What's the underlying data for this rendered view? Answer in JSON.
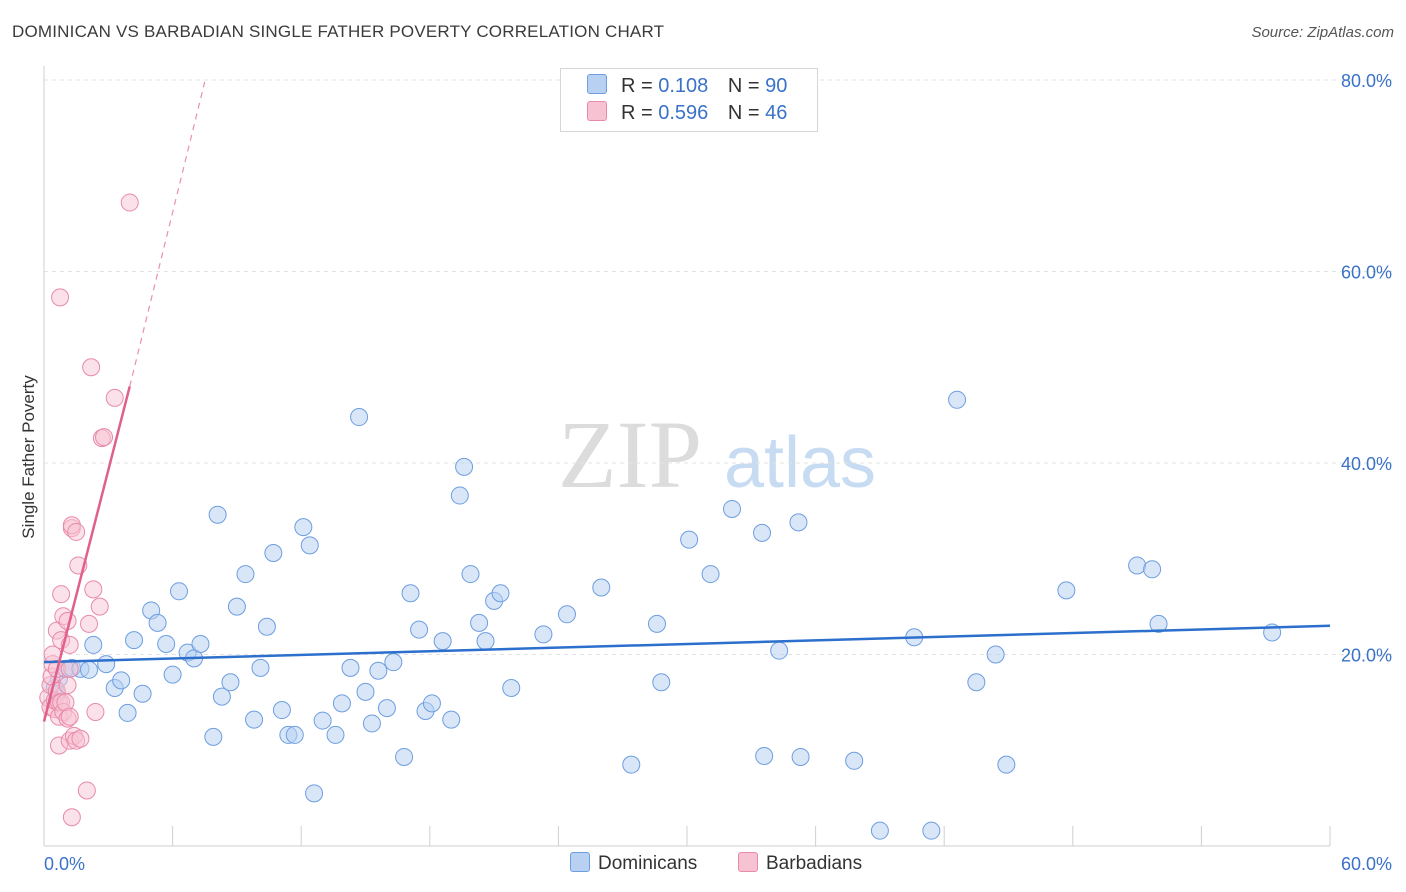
{
  "title": "DOMINICAN VS BARBADIAN SINGLE FATHER POVERTY CORRELATION CHART",
  "source": "Source: ZipAtlas.com",
  "watermark": {
    "zip": "ZIP",
    "atlas": "atlas"
  },
  "legend": {
    "r_label": "R =",
    "n_label": "N =",
    "dominicans": {
      "r": "0.108",
      "n": "90"
    },
    "barbadians": {
      "r": "0.596",
      "n": "46"
    }
  },
  "bottom_legend": {
    "dominicans": "Dominicans",
    "barbadians": "Barbadians"
  },
  "colors": {
    "dominicans_fill": "#b8d1f2",
    "dominicans_stroke": "#6d9ee0",
    "dominicans_line": "#2c6fcc",
    "barbadians_fill": "#f7c3d3",
    "barbadians_stroke": "#e98aaa",
    "barbadians_line": "#e0608d",
    "axis_label": "#3a72c8",
    "grid": "#e3e3e3"
  },
  "chart_data": {
    "type": "scatter",
    "title": "DOMINICAN VS BARBADIAN SINGLE FATHER POVERTY CORRELATION CHART",
    "xlabel": "",
    "ylabel": "Single Father Poverty",
    "xlim": [
      0,
      60
    ],
    "ylim": [
      0,
      80
    ],
    "x_tick_labels": [
      "0.0%",
      "60.0%"
    ],
    "y_ticks": [
      20,
      40,
      60,
      80
    ],
    "y_tick_labels": [
      "20.0%",
      "40.0%",
      "60.0%",
      "80.0%"
    ],
    "series": [
      {
        "name": "Dominicans",
        "r": 0.108,
        "n": 90,
        "trend": {
          "x": [
            0,
            60
          ],
          "y": [
            19.2,
            23.0
          ]
        },
        "points": [
          [
            0.5,
            16.5
          ],
          [
            0.7,
            17.5
          ],
          [
            0.6,
            15.9
          ],
          [
            1.0,
            18.5
          ],
          [
            1.3,
            18.6
          ],
          [
            1.7,
            18.5
          ],
          [
            2.1,
            18.4
          ],
          [
            2.3,
            21.0
          ],
          [
            2.9,
            19.0
          ],
          [
            3.3,
            16.5
          ],
          [
            3.6,
            17.3
          ],
          [
            3.9,
            13.9
          ],
          [
            4.2,
            21.5
          ],
          [
            4.6,
            15.9
          ],
          [
            5.0,
            24.6
          ],
          [
            5.3,
            23.3
          ],
          [
            5.7,
            21.1
          ],
          [
            6.0,
            17.9
          ],
          [
            6.3,
            26.6
          ],
          [
            6.7,
            20.2
          ],
          [
            7.0,
            19.6
          ],
          [
            7.3,
            21.1
          ],
          [
            7.9,
            11.4
          ],
          [
            8.1,
            34.6
          ],
          [
            8.3,
            15.6
          ],
          [
            8.7,
            17.1
          ],
          [
            9.0,
            25.0
          ],
          [
            9.4,
            28.4
          ],
          [
            9.8,
            13.2
          ],
          [
            10.1,
            18.6
          ],
          [
            10.4,
            22.9
          ],
          [
            10.7,
            30.6
          ],
          [
            11.1,
            14.2
          ],
          [
            11.4,
            11.6
          ],
          [
            11.7,
            11.6
          ],
          [
            12.1,
            33.3
          ],
          [
            12.4,
            31.4
          ],
          [
            12.6,
            5.5
          ],
          [
            13.0,
            13.1
          ],
          [
            13.6,
            11.6
          ],
          [
            13.9,
            14.9
          ],
          [
            14.3,
            18.6
          ],
          [
            14.7,
            44.8
          ],
          [
            15.0,
            16.1
          ],
          [
            15.3,
            12.8
          ],
          [
            15.6,
            18.3
          ],
          [
            16.0,
            14.4
          ],
          [
            16.3,
            19.2
          ],
          [
            16.8,
            9.3
          ],
          [
            17.1,
            26.4
          ],
          [
            17.5,
            22.6
          ],
          [
            17.8,
            14.1
          ],
          [
            18.1,
            14.9
          ],
          [
            18.6,
            21.4
          ],
          [
            19.0,
            13.2
          ],
          [
            19.4,
            36.6
          ],
          [
            19.6,
            39.6
          ],
          [
            19.9,
            28.4
          ],
          [
            20.3,
            23.3
          ],
          [
            20.6,
            21.4
          ],
          [
            21.0,
            25.6
          ],
          [
            21.3,
            26.4
          ],
          [
            21.8,
            16.5
          ],
          [
            23.3,
            22.1
          ],
          [
            24.4,
            24.2
          ],
          [
            26.0,
            27.0
          ],
          [
            27.4,
            8.5
          ],
          [
            28.6,
            23.2
          ],
          [
            28.8,
            17.1
          ],
          [
            30.1,
            32.0
          ],
          [
            31.1,
            28.4
          ],
          [
            32.1,
            35.2
          ],
          [
            33.5,
            32.7
          ],
          [
            33.6,
            9.4
          ],
          [
            34.3,
            20.4
          ],
          [
            35.2,
            33.8
          ],
          [
            35.3,
            9.3
          ],
          [
            37.8,
            8.9
          ],
          [
            39.0,
            1.6
          ],
          [
            40.6,
            21.8
          ],
          [
            41.4,
            1.6
          ],
          [
            42.6,
            46.6
          ],
          [
            43.5,
            17.1
          ],
          [
            44.4,
            20.0
          ],
          [
            44.9,
            8.5
          ],
          [
            47.7,
            26.7
          ],
          [
            51.0,
            29.3
          ],
          [
            51.7,
            28.9
          ],
          [
            52.0,
            23.2
          ],
          [
            57.3,
            22.3
          ]
        ]
      },
      {
        "name": "Barbadians",
        "r": 0.596,
        "n": 46,
        "trend": {
          "x": [
            0,
            4.0
          ],
          "y": [
            13.0,
            48.0
          ],
          "x_dashed_to": 7.5,
          "y_dashed_to": 79.8
        },
        "points": [
          [
            0.2,
            15.5
          ],
          [
            0.3,
            14.5
          ],
          [
            0.3,
            16.8
          ],
          [
            0.35,
            17.7
          ],
          [
            0.4,
            19.0
          ],
          [
            0.4,
            20.0
          ],
          [
            0.5,
            14.3
          ],
          [
            0.5,
            15.2
          ],
          [
            0.6,
            16.2
          ],
          [
            0.6,
            22.5
          ],
          [
            0.6,
            18.5
          ],
          [
            0.7,
            10.5
          ],
          [
            0.7,
            13.5
          ],
          [
            0.7,
            15.0
          ],
          [
            0.75,
            57.3
          ],
          [
            0.8,
            21.5
          ],
          [
            0.8,
            26.3
          ],
          [
            0.8,
            15.0
          ],
          [
            0.9,
            14.0
          ],
          [
            0.9,
            24.0
          ],
          [
            1.0,
            15.0
          ],
          [
            1.1,
            23.5
          ],
          [
            1.1,
            13.3
          ],
          [
            1.1,
            16.8
          ],
          [
            1.2,
            18.5
          ],
          [
            1.2,
            21.0
          ],
          [
            1.2,
            11.0
          ],
          [
            1.2,
            13.5
          ],
          [
            1.3,
            3.0
          ],
          [
            1.3,
            33.2
          ],
          [
            1.3,
            33.5
          ],
          [
            1.4,
            11.5
          ],
          [
            1.5,
            11.0
          ],
          [
            1.5,
            32.8
          ],
          [
            1.6,
            29.3
          ],
          [
            1.7,
            11.2
          ],
          [
            2.0,
            5.8
          ],
          [
            2.1,
            23.2
          ],
          [
            2.2,
            50.0
          ],
          [
            2.3,
            26.8
          ],
          [
            2.4,
            14.0
          ],
          [
            2.6,
            25.0
          ],
          [
            2.7,
            42.6
          ],
          [
            2.8,
            42.7
          ],
          [
            3.3,
            46.8
          ],
          [
            4.0,
            67.2
          ]
        ]
      }
    ]
  }
}
